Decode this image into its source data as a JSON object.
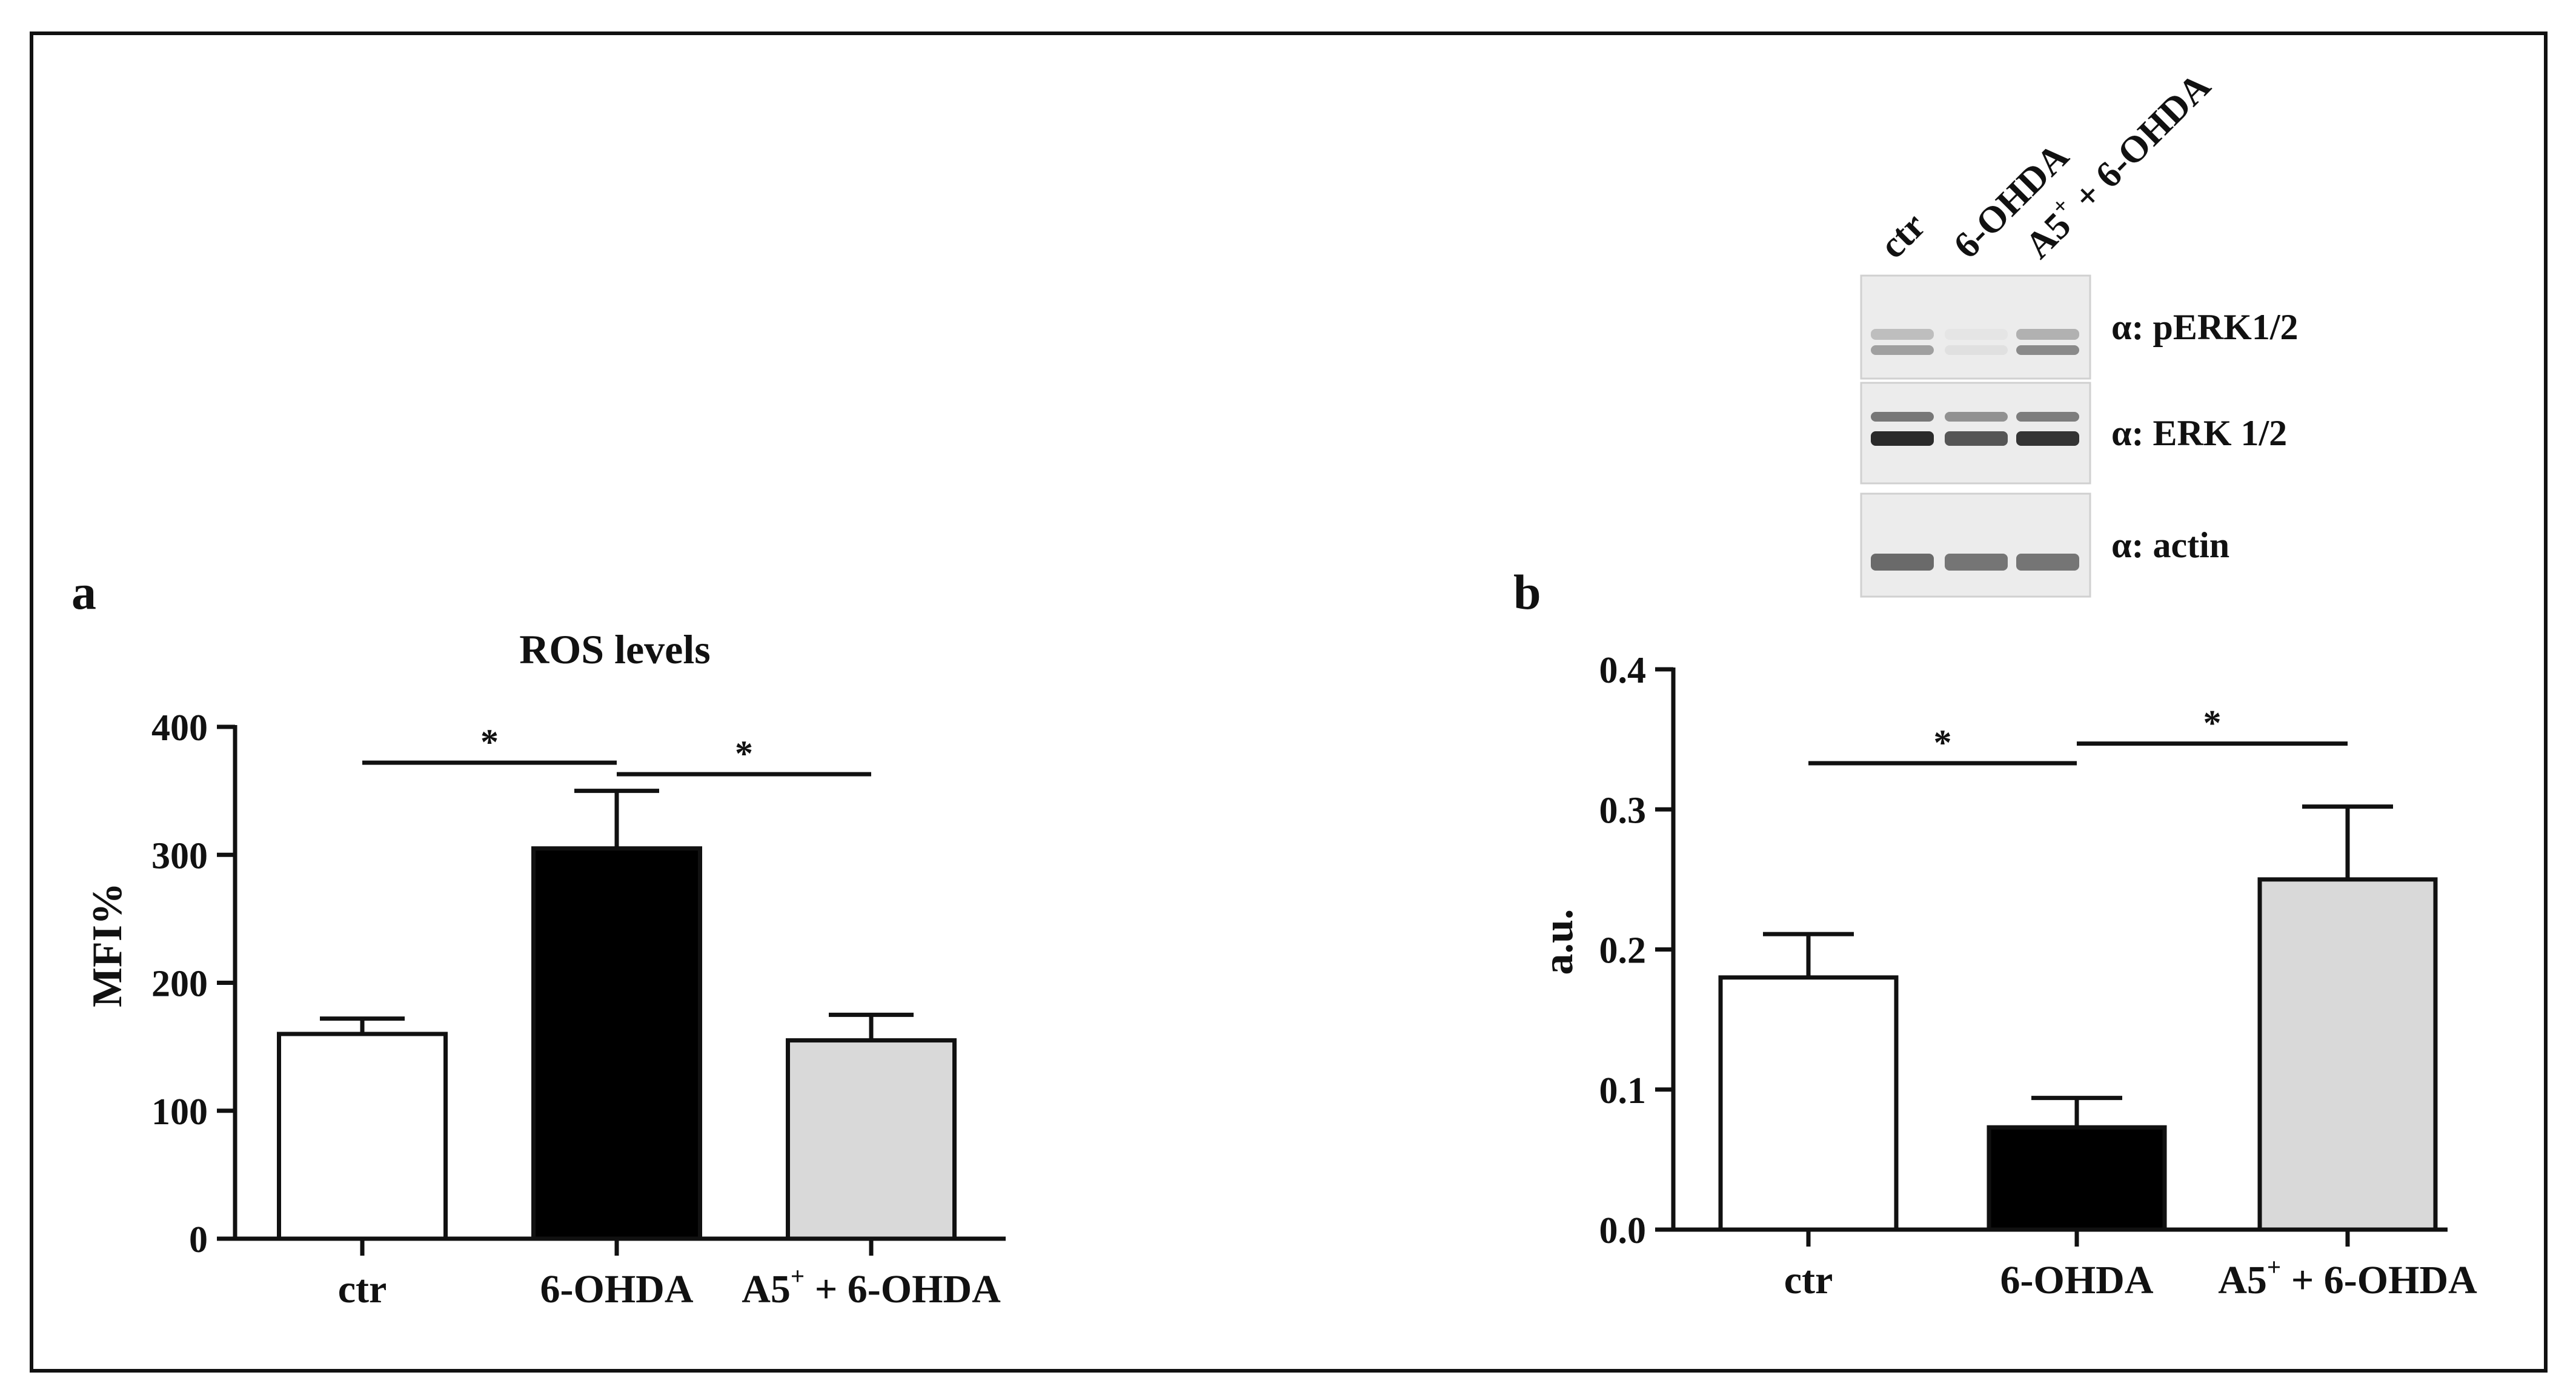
{
  "colors": {
    "ctr": "#ffffff",
    "ohda": "#000000",
    "a5": "#d9d9d9",
    "axis": "#111111",
    "border": "#111111"
  },
  "chart_data": [
    {
      "panel": "a",
      "type": "bar",
      "title": "ROS levels",
      "xlabel": "",
      "ylabel": "MFI%",
      "ylim": [
        0,
        400
      ],
      "yticks": [
        0,
        100,
        200,
        300,
        400
      ],
      "ytick_labels": [
        "0",
        "100",
        "200",
        "300",
        "400"
      ],
      "categories": [
        "ctr",
        "6-OHDA",
        "A5+ + 6-OHDA"
      ],
      "category_labels": [
        {
          "main": "ctr",
          "sup": "",
          "rest": ""
        },
        {
          "main": "6-OHDA",
          "sup": "",
          "rest": ""
        },
        {
          "main": "A5",
          "sup": "+",
          "rest": " + 6-OHDA"
        }
      ],
      "values": [
        160,
        305,
        155
      ],
      "errors": [
        12,
        45,
        20
      ],
      "colors": [
        "ctr",
        "ohda",
        "a5"
      ],
      "significance": [
        {
          "from": 0,
          "to": 1,
          "label": "*",
          "y": 372
        },
        {
          "from": 1,
          "to": 2,
          "label": "*",
          "y": 363
        }
      ]
    },
    {
      "panel": "b",
      "type": "bar",
      "title": "",
      "xlabel": "",
      "ylabel": "a.u.",
      "ylim": [
        0,
        0.4
      ],
      "yticks": [
        0,
        0.1,
        0.2,
        0.3,
        0.4
      ],
      "ytick_labels": [
        "0.0",
        "0.1",
        "0.2",
        "0.3",
        "0.4"
      ],
      "categories": [
        "ctr",
        "6-OHDA",
        "A5+ + 6-OHDA"
      ],
      "category_labels": [
        {
          "main": "ctr",
          "sup": "",
          "rest": ""
        },
        {
          "main": "6-OHDA",
          "sup": "",
          "rest": ""
        },
        {
          "main": "A5",
          "sup": "+",
          "rest": " + 6-OHDA"
        }
      ],
      "values": [
        0.18,
        0.073,
        0.25
      ],
      "errors": [
        0.031,
        0.021,
        0.052
      ],
      "colors": [
        "ctr",
        "ohda",
        "a5"
      ],
      "significance": [
        {
          "from": 0,
          "to": 1,
          "label": "*",
          "y": 0.333
        },
        {
          "from": 1,
          "to": 2,
          "label": "*",
          "y": 0.347
        }
      ]
    }
  ],
  "blot": {
    "lanes": [
      {
        "main": "ctr",
        "sup": "",
        "rest": ""
      },
      {
        "main": "6-OHDA",
        "sup": "",
        "rest": ""
      },
      {
        "main": "A5",
        "sup": "+",
        "rest": " + 6-OHDA"
      }
    ],
    "rows": [
      {
        "label": "α: pERK1/2",
        "intensities": [
          0.35,
          0.05,
          0.45
        ]
      },
      {
        "label": "α: ERK 1/2",
        "intensities": [
          0.9,
          0.7,
          0.85
        ]
      },
      {
        "label": "α: actin",
        "intensities": [
          0.6,
          0.55,
          0.55
        ]
      }
    ]
  }
}
